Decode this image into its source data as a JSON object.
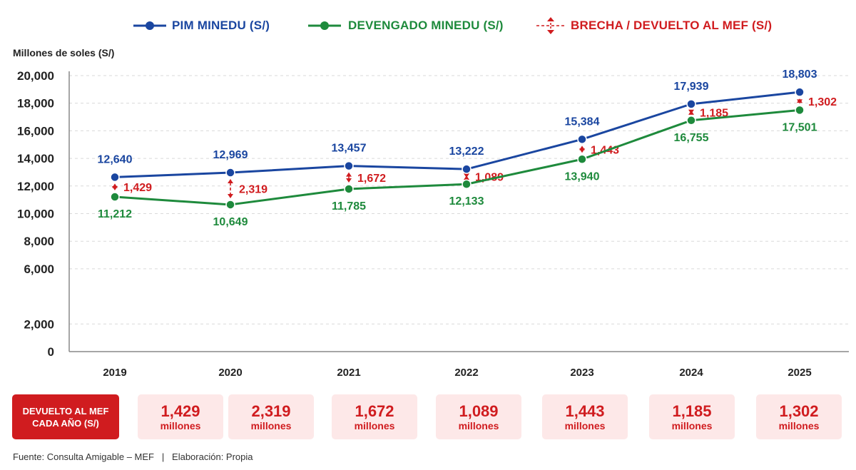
{
  "legend": {
    "pim_label": "PIM MINEDU (S/)",
    "dev_label": "DEVENGADO MINEDU (S/)",
    "gap_label": "BRECHA / DEVUELTO AL MEF (S/)"
  },
  "colors": {
    "pim": "#1a46a0",
    "dev": "#1e8a3c",
    "gap": "#d01c1f",
    "grid": "#d9d9d9",
    "axis": "#888888"
  },
  "chart_data": {
    "type": "line",
    "title": "",
    "xlabel": "",
    "ylabel": "Millones de soles (S/)",
    "ylim": [
      0,
      20000
    ],
    "yticks": [
      "0",
      "2,000",
      "6,000",
      "8,000",
      "10,000",
      "12,000",
      "14,000",
      "16,000",
      "18,000",
      "20,000"
    ],
    "ytick_values": [
      0,
      2000,
      6000,
      8000,
      10000,
      12000,
      14000,
      16000,
      18000,
      20000
    ],
    "grid": true,
    "legend_position": "top",
    "categories": [
      "2019",
      "2020",
      "2021",
      "2022",
      "2023",
      "2024",
      "2025"
    ],
    "series": [
      {
        "name": "PIM MINEDU (S/)",
        "values": [
          12640,
          12969,
          13457,
          13222,
          15384,
          17939,
          18803
        ],
        "labels": [
          "12,640",
          "12,969",
          "13,457",
          "13,222",
          "15,384",
          "17,939",
          "18,803"
        ]
      },
      {
        "name": "DEVENGADO MINEDU (S/)",
        "values": [
          11212,
          10649,
          11785,
          12133,
          13940,
          16755,
          17501
        ],
        "labels": [
          "11,212",
          "10,649",
          "11,785",
          "12,133",
          "13,940",
          "16,755",
          "17,501"
        ]
      }
    ],
    "gaps": {
      "name": "BRECHA / DEVUELTO AL MEF (S/)",
      "values": [
        1429,
        2319,
        1672,
        1089,
        1443,
        1185,
        1302
      ],
      "labels": [
        "1,429",
        "2,319",
        "1,672",
        "1,089",
        "1,443",
        "1,185",
        "1,302"
      ]
    }
  },
  "footer": {
    "title_line1": "DEVUELTO AL MEF",
    "title_line2": "CADA AÑO (S/)",
    "unit": "millones",
    "values": [
      "1,429",
      "2,319",
      "1,672",
      "1,089",
      "1,443",
      "1,185",
      "1,302"
    ]
  },
  "source": "Fuente: Consulta Amigable – MEF   |   Elaboración: Propia"
}
